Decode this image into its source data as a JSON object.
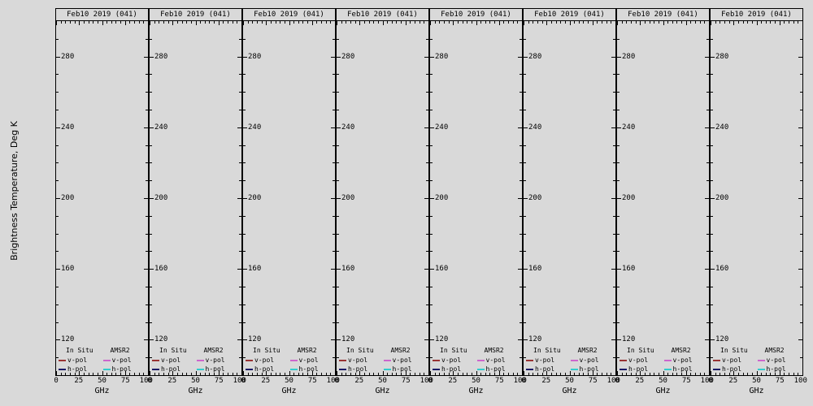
{
  "figure": {
    "background_color": "#d9d9d9",
    "ylabel": "Brightness Temperature, Deg K",
    "panel_count": 8
  },
  "panel": {
    "title": "Feb10 2019 (041)",
    "xlabel": "GHz",
    "legend": {
      "col1_header": "In Situ",
      "col2_header": "AMSR2",
      "v_label": "v-pol",
      "h_label": "h-pol"
    }
  },
  "colors": {
    "in-situ-v": "#993333",
    "in-situ-h": "#1a1a66",
    "amsr2-v": "#cc66cc",
    "amsr2-h": "#33cccc"
  },
  "chart_data": {
    "type": "line",
    "title": "Feb10 2019 (041)",
    "xlabel": "GHz",
    "ylabel": "Brightness Temperature, Deg K",
    "panels": 8,
    "xlim": [
      0,
      100
    ],
    "ylim": [
      100,
      300
    ],
    "xticks": [
      0,
      25,
      50,
      75,
      100
    ],
    "yticks": [
      120,
      160,
      200,
      240,
      280
    ],
    "grid": false,
    "legend_position": "bottom-left-inside",
    "series": [
      {
        "name": "In Situ v-pol",
        "color": "#993333",
        "x": [],
        "y": []
      },
      {
        "name": "In Situ h-pol",
        "color": "#1a1a66",
        "x": [],
        "y": []
      },
      {
        "name": "AMSR2 v-pol",
        "color": "#cc66cc",
        "x": [],
        "y": []
      },
      {
        "name": "AMSR2 h-pol",
        "color": "#33cccc",
        "x": [],
        "y": []
      }
    ]
  }
}
